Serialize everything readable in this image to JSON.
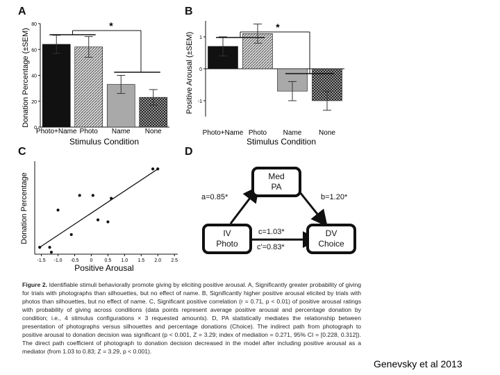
{
  "panel_labels": {
    "a": "A",
    "b": "B",
    "c": "C",
    "d": "D"
  },
  "chart_data": [
    {
      "type": "bar",
      "panel": "A",
      "ylabel": "Donation Percentage (±SEM)",
      "xlabel": "Stimulus Condition",
      "categories": [
        "Photo+Name",
        "Photo",
        "Name",
        "None"
      ],
      "values": [
        64,
        62,
        33,
        23
      ],
      "errors": [
        7,
        8,
        7,
        6
      ],
      "yticks": [
        "0",
        "20",
        "40",
        "60",
        "80"
      ],
      "ylim": [
        0,
        80
      ],
      "significance": "*"
    },
    {
      "type": "bar",
      "panel": "B",
      "ylabel": "Positive Arousal (±SEM)",
      "xlabel": "Stimulus Condition",
      "categories": [
        "Photo+Name",
        "Photo",
        "Name",
        "None"
      ],
      "values": [
        0.7,
        1.1,
        -0.7,
        -1.0
      ],
      "errors": [
        0.3,
        0.3,
        0.3,
        0.3
      ],
      "yticks": [
        "-1",
        "0",
        "1"
      ],
      "ylim": [
        -1.5,
        1.5
      ],
      "significance": "*"
    },
    {
      "type": "scatter",
      "panel": "C",
      "ylabel": "Donation Percentage",
      "xlabel": "Positive Arousal",
      "xticks": [
        "-1.5",
        "-1.0",
        "-0.5",
        "0",
        "0.5",
        "1.0",
        "1.5",
        "2.0",
        "2.5"
      ],
      "xlim": [
        -1.7,
        2.6
      ],
      "ylim": [
        0.05,
        1.0
      ],
      "x": [
        -1.55,
        -1.25,
        -1.2,
        -1.0,
        -0.6,
        -0.35,
        0.05,
        0.2,
        0.5,
        0.6,
        1.85,
        2.0
      ],
      "y": [
        0.12,
        0.12,
        0.07,
        0.5,
        0.25,
        0.65,
        0.65,
        0.4,
        0.38,
        0.62,
        0.92,
        0.92
      ],
      "fit": {
        "x": [
          -1.55,
          2.0
        ],
        "y": [
          0.12,
          0.92
        ]
      }
    }
  ],
  "mediation": {
    "mediator": {
      "line1": "Med",
      "line2": "PA"
    },
    "iv": {
      "line1": "IV",
      "line2": "Photo"
    },
    "dv": {
      "line1": "DV",
      "line2": "Choice"
    },
    "path_a": "a=0.85*",
    "path_b": "b=1.20*",
    "path_c": "c=1.03*",
    "path_c_prime": "c'=0.83*"
  },
  "caption": {
    "label": "Figure 2.",
    "text": "Identifiable stimuli behaviorally promote giving by eliciting positive arousal. A, Significantly greater probability of giving for trials with photographs than silhouettes, but no effect of name. B, Significantly higher positive arousal elicited by trials with photos than silhouettes, but no effect of name. C, Significant positive correlation (r = 0.71, p < 0.01) of positive arousal ratings with probability of giving across conditions (data points represent average positive arousal and percentage donation by condition; i.e., 4 stimulus configurations × 3 requested amounts). D, PA statistically mediates the relationship between presentation of photographs versus silhouettes and percentage donations (Choice). The indirect path from photograph to positive arousal to donation decision was significant (p < 0.001, Z = 3.29; index of mediation = 0.271, 95% CI = [0.228, 0.312]). The direct path coefficient of photograph to donation decision decreased in the model after including positive arousal as a mediator (from 1.03 to 0.83; Z = 3.29, p < 0.001)."
  },
  "credit": "Genevsky et al 2013",
  "colors": {
    "black_bar": "#111111",
    "hatch": "#8a8a8a",
    "gray_bar": "#a9a9a9",
    "checker": "#3a3a3a"
  }
}
